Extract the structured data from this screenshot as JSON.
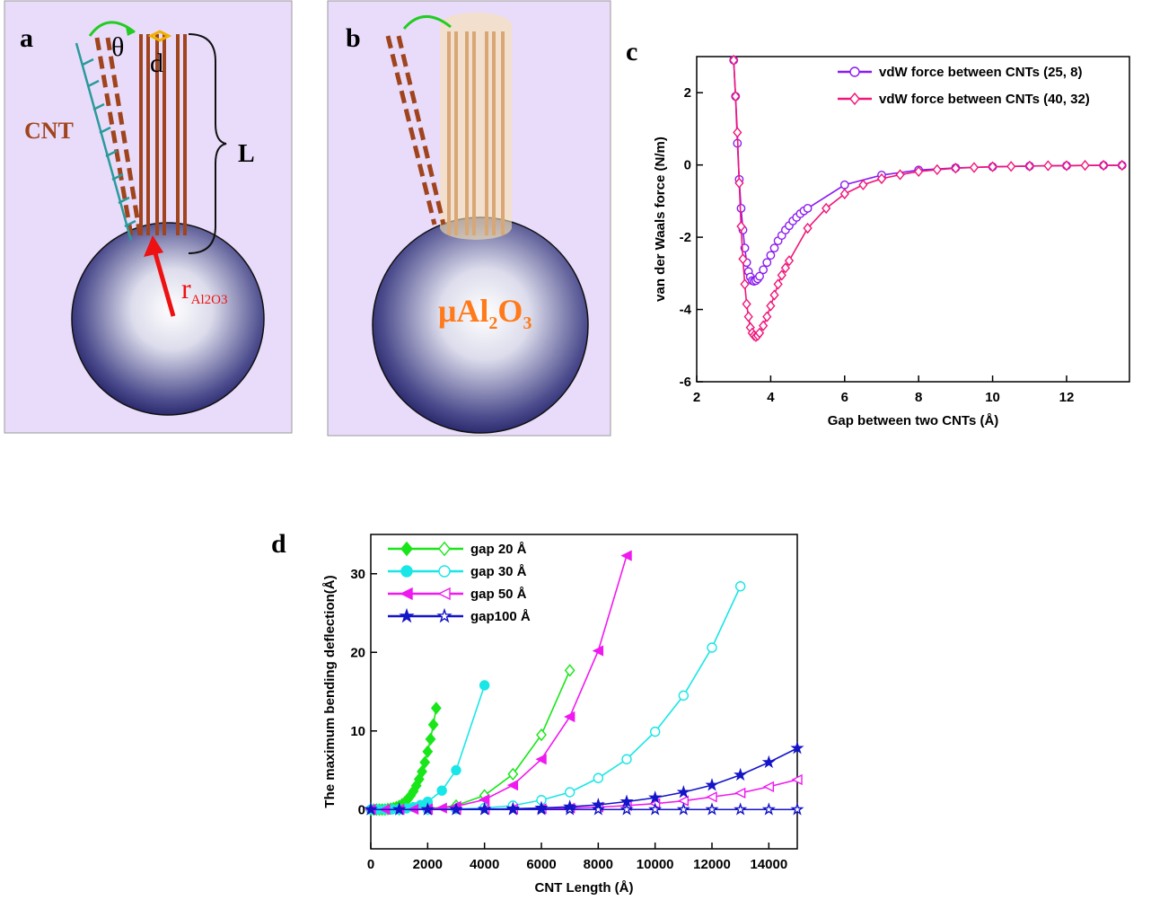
{
  "panel_a": {
    "label": "a",
    "theta": "θ",
    "gap": "d",
    "tube": "CNT",
    "length": "L",
    "radius": "r",
    "radius_sub": "Al2O3"
  },
  "panel_b": {
    "label": "b",
    "material": [
      "μAl",
      "2",
      "O",
      "3"
    ]
  },
  "chart_data": [
    {
      "type": "line",
      "panel_label": "c",
      "x_label": "Gap between two CNTs (Å)",
      "y_label": "van der Waals force  (N/m)",
      "xlim": [
        2,
        13.7
      ],
      "ylim": [
        -6,
        3
      ],
      "xticks": [
        2,
        4,
        6,
        8,
        10,
        12
      ],
      "yticks": [
        -6,
        -4,
        -2,
        0,
        2
      ],
      "legend": "upper right",
      "series": [
        {
          "name": "vdW force between CNTs (25, 8)",
          "color": "#8a1cf0",
          "marker": "circle",
          "x": [
            3.0,
            3.05,
            3.1,
            3.15,
            3.2,
            3.25,
            3.3,
            3.35,
            3.4,
            3.45,
            3.5,
            3.55,
            3.6,
            3.65,
            3.7,
            3.8,
            3.9,
            4.0,
            4.1,
            4.2,
            4.3,
            4.4,
            4.5,
            4.6,
            4.7,
            4.8,
            4.9,
            5.0,
            6,
            7,
            8,
            9,
            10,
            11,
            12,
            13,
            13.5
          ],
          "values": [
            2.9,
            1.9,
            0.6,
            -0.4,
            -1.2,
            -1.8,
            -2.3,
            -2.7,
            -2.95,
            -3.1,
            -3.2,
            -3.22,
            -3.2,
            -3.15,
            -3.08,
            -2.9,
            -2.7,
            -2.5,
            -2.3,
            -2.1,
            -1.95,
            -1.8,
            -1.68,
            -1.55,
            -1.45,
            -1.35,
            -1.27,
            -1.2,
            -0.55,
            -0.28,
            -0.14,
            -0.08,
            -0.05,
            -0.03,
            -0.02,
            -0.01,
            -0.01
          ]
        },
        {
          "name": "vdW force between CNTs (40, 32)",
          "color": "#f0157a",
          "marker": "diamond",
          "x": [
            3.0,
            3.05,
            3.1,
            3.15,
            3.2,
            3.25,
            3.3,
            3.35,
            3.4,
            3.45,
            3.5,
            3.55,
            3.6,
            3.65,
            3.7,
            3.8,
            3.9,
            4.0,
            4.1,
            4.2,
            4.3,
            4.4,
            4.5,
            5.0,
            5.5,
            6.0,
            6.5,
            7,
            7.5,
            8,
            8.5,
            9,
            9.5,
            10,
            10.5,
            11,
            11.5,
            12,
            12.5,
            13,
            13.5
          ],
          "values": [
            2.9,
            1.9,
            0.9,
            -0.5,
            -1.7,
            -2.6,
            -3.3,
            -3.85,
            -4.2,
            -4.5,
            -4.65,
            -4.72,
            -4.75,
            -4.72,
            -4.65,
            -4.45,
            -4.2,
            -3.9,
            -3.6,
            -3.3,
            -3.05,
            -2.85,
            -2.65,
            -1.75,
            -1.2,
            -0.8,
            -0.55,
            -0.38,
            -0.27,
            -0.18,
            -0.13,
            -0.09,
            -0.07,
            -0.05,
            -0.04,
            -0.03,
            -0.02,
            -0.02,
            -0.01,
            -0.01,
            -0.01
          ]
        }
      ]
    },
    {
      "type": "line",
      "panel_label": "d",
      "x_label": "CNT Length (Å)",
      "y_label": "The maximum bending deflection(Å)",
      "xlim": [
        0,
        15000
      ],
      "ylim": [
        -5,
        35
      ],
      "xticks": [
        0,
        2000,
        4000,
        6000,
        8000,
        10000,
        12000,
        14000
      ],
      "yticks": [
        0,
        10,
        20,
        30
      ],
      "legend": "upper left",
      "series": [
        {
          "name": "gap 20 Å",
          "color": "#19e619",
          "marker": "diamond",
          "filled": {
            "x": [
              0,
              100,
              200,
              300,
              400,
              500,
              600,
              700,
              800,
              900,
              1000,
              1100,
              1200,
              1300,
              1400,
              1500,
              1600,
              1700,
              1800,
              1900,
              2000,
              2100,
              2200,
              2300
            ],
            "values": [
              0,
              0,
              0,
              0,
              0,
              0,
              0.06,
              0.11,
              0.19,
              0.3,
              0.46,
              0.67,
              0.95,
              1.32,
              1.77,
              2.33,
              3.03,
              3.86,
              4.83,
              6.0,
              7.37,
              8.96,
              10.8,
              12.9
            ]
          },
          "open": {
            "x": [
              1000,
              2000,
              3000,
              4000,
              5000,
              6000,
              7000
            ],
            "values": [
              0.02,
              0.1,
              0.5,
              1.8,
              4.5,
              9.5,
              17.7
            ]
          }
        },
        {
          "name": "gap 30 Å",
          "color": "#19e6e6",
          "marker": "circle",
          "filled": {
            "x": [
              0,
              250,
              500,
              750,
              1000,
              1250,
              1500,
              1750,
              2000,
              2500,
              3000,
              4000
            ],
            "values": [
              0,
              0,
              0,
              0.02,
              0.06,
              0.15,
              0.31,
              0.58,
              0.99,
              2.41,
              5.0,
              15.8
            ]
          },
          "open": {
            "x": [
              1000,
              2000,
              3000,
              4000,
              5000,
              6000,
              7000,
              8000,
              9000,
              10000,
              11000,
              12000,
              13000
            ],
            "values": [
              0,
              0.01,
              0.07,
              0.2,
              0.5,
              1.2,
              2.2,
              4.0,
              6.4,
              9.9,
              14.5,
              20.6,
              28.4
            ]
          }
        },
        {
          "name": "gap 50 Å",
          "color": "#f019f0",
          "marker": "triangle-left",
          "filled": {
            "x": [
              0,
              500,
              1000,
              1500,
              2000,
              2500,
              3000,
              4000,
              5000,
              6000,
              7000,
              8000,
              9000
            ],
            "values": [
              0,
              0,
              0.01,
              0.03,
              0.08,
              0.19,
              0.4,
              1.26,
              3.1,
              6.4,
              11.8,
              20.2,
              32.3
            ]
          },
          "open": {
            "x": [
              1000,
              2000,
              3000,
              4000,
              5000,
              6000,
              7000,
              8000,
              9000,
              10000,
              11000,
              12000,
              13000,
              14000,
              15000
            ],
            "values": [
              0,
              0,
              0.01,
              0.02,
              0.05,
              0.1,
              0.18,
              0.3,
              0.5,
              0.75,
              1.1,
              1.6,
              2.1,
              2.9,
              3.8
            ]
          }
        },
        {
          "name": "gap100 Å",
          "color": "#1414c8",
          "marker": "star",
          "filled": {
            "x": [
              0,
              1000,
              2000,
              3000,
              4000,
              5000,
              6000,
              7000,
              8000,
              9000,
              10000,
              11000,
              12000,
              13000,
              14000,
              15000
            ],
            "values": [
              0,
              0,
              0,
              0.02,
              0.05,
              0.1,
              0.2,
              0.35,
              0.6,
              1.0,
              1.5,
              2.2,
              3.1,
              4.4,
              6.0,
              7.8
            ]
          },
          "open": {
            "x": [
              0,
              1000,
              2000,
              3000,
              4000,
              5000,
              6000,
              7000,
              8000,
              9000,
              10000,
              11000,
              12000,
              13000,
              14000,
              15000
            ],
            "values": [
              0,
              0,
              0,
              0,
              0,
              0,
              0,
              0,
              0,
              0,
              0,
              0,
              0,
              0,
              0,
              0
            ]
          }
        }
      ]
    }
  ]
}
